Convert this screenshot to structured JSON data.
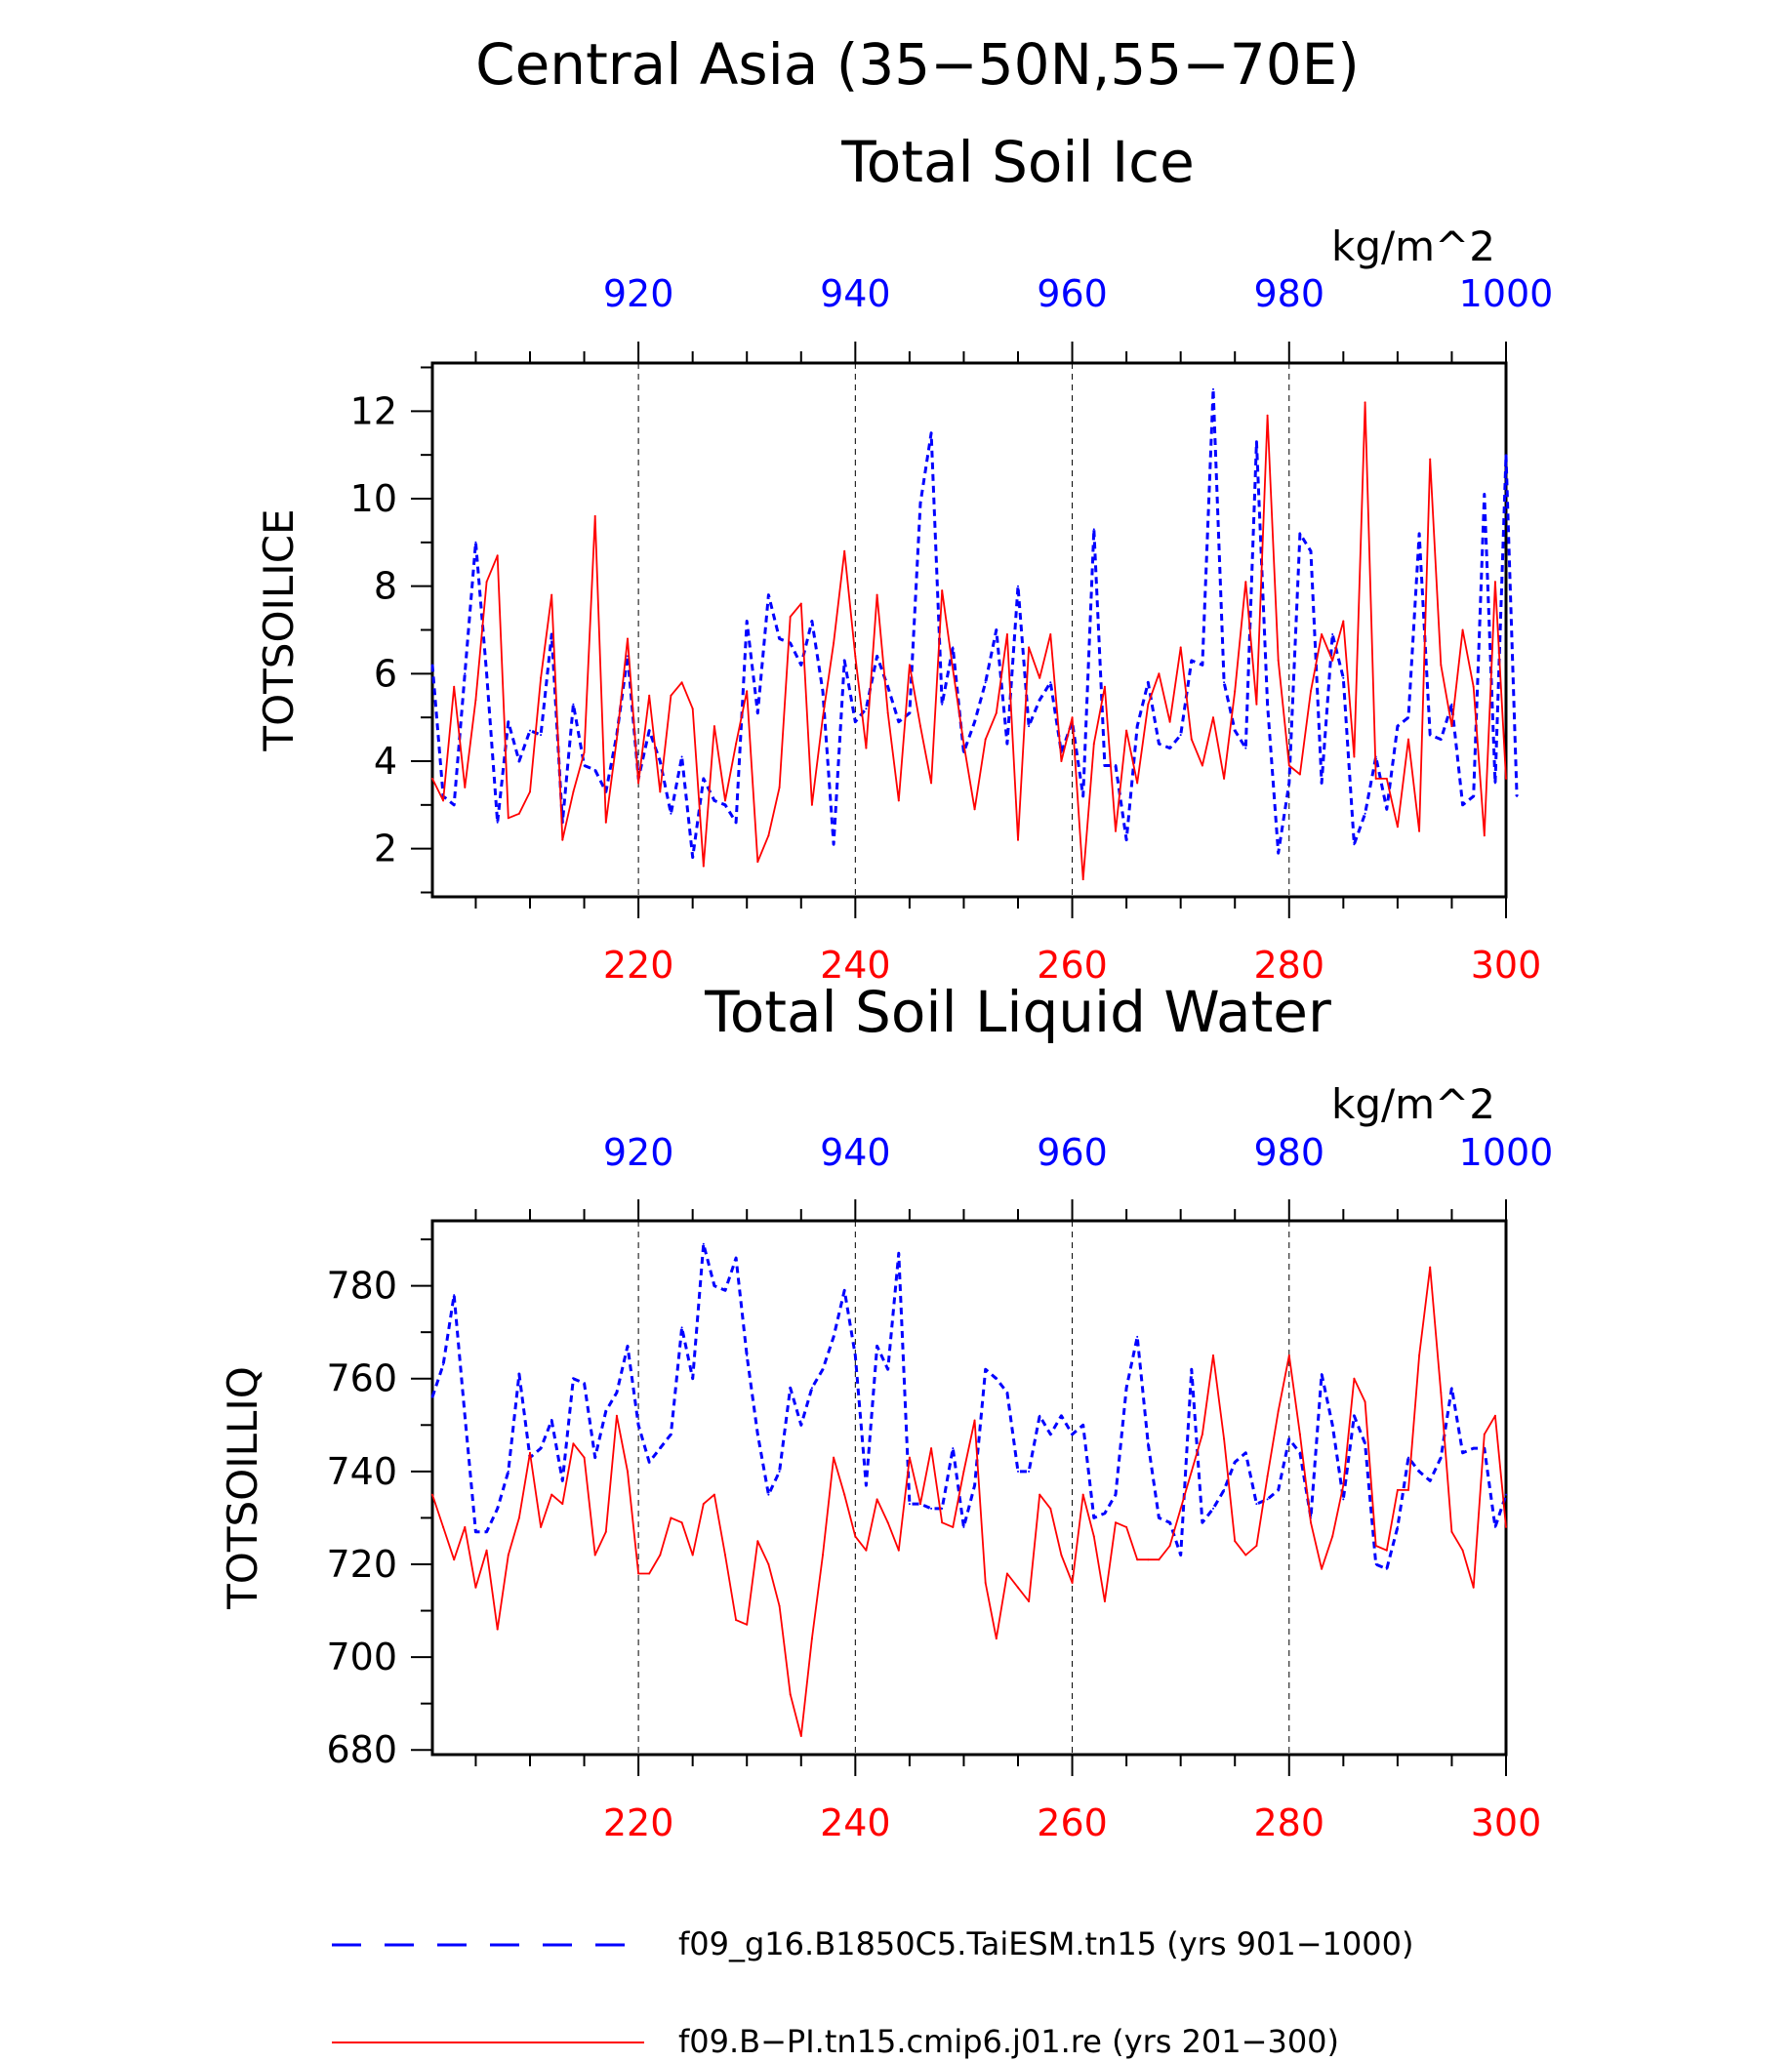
{
  "figure": {
    "title": "Central Asia (35−50N,55−70E)",
    "legend_position": "bottom"
  },
  "colors": {
    "blue": "#0000ff",
    "red": "#ff0000",
    "axis": "#000000",
    "grid": "#000000"
  },
  "legend": [
    {
      "label": "f09_g16.B1850C5.TaiESM.tn15 (yrs 901−1000)",
      "color": "#0000ff",
      "style": "dashed"
    },
    {
      "label": "f09.B−PI.tn15.cmip6.j01.re (yrs 201−300)",
      "color": "#ff0000",
      "style": "solid"
    }
  ],
  "chart_data": [
    {
      "type": "line",
      "title": "Total Soil Ice",
      "ylabel": "TOTSOILICE",
      "units": "kg/m^2",
      "ylim": [
        0.9,
        13.1
      ],
      "yticks": [
        2,
        4,
        6,
        8,
        10,
        12
      ],
      "grid": "vertical dashed at x ticks",
      "x_bottom": {
        "lim": [
          201,
          300
        ],
        "ticks": [
          220,
          240,
          260,
          280,
          300
        ],
        "color": "#ff0000"
      },
      "x_top": {
        "lim": [
          901,
          1000
        ],
        "ticks": [
          920,
          940,
          960,
          980,
          1000
        ],
        "color": "#0000ff"
      },
      "series": [
        {
          "axis": "top",
          "color": "#0000ff",
          "style": "dashed",
          "x_start": 901,
          "values": [
            6.2,
            3.2,
            3.0,
            6.0,
            9.0,
            6.0,
            2.6,
            4.9,
            4.0,
            4.7,
            4.6,
            6.9,
            2.6,
            5.3,
            3.9,
            3.8,
            3.3,
            4.6,
            6.4,
            3.6,
            4.7,
            4.0,
            2.8,
            4.1,
            1.8,
            3.6,
            3.1,
            3.0,
            2.6,
            7.2,
            5.1,
            7.8,
            6.8,
            6.7,
            6.2,
            7.2,
            5.6,
            2.1,
            6.3,
            4.9,
            5.2,
            6.4,
            5.7,
            4.9,
            5.1,
            9.9,
            11.5,
            5.3,
            6.6,
            4.2,
            4.9,
            5.8,
            7.0,
            4.4,
            8.0,
            4.8,
            5.4,
            5.8,
            4.2,
            4.9,
            3.2,
            9.3,
            3.9,
            3.9,
            2.2,
            4.8,
            5.8,
            4.4,
            4.3,
            4.6,
            6.3,
            6.2,
            12.5,
            5.8,
            4.7,
            4.3,
            11.3,
            5.3,
            1.9,
            3.5,
            9.2,
            8.8,
            3.5,
            6.9,
            5.9,
            2.1,
            2.8,
            4.1,
            2.9,
            4.8,
            5.0,
            9.2,
            4.6,
            4.5,
            5.3,
            3.0,
            3.2,
            10.1,
            3.5,
            11.0,
            3.2
          ]
        },
        {
          "axis": "bottom",
          "color": "#ff0000",
          "style": "solid",
          "x_start": 201,
          "values": [
            3.6,
            3.1,
            5.7,
            3.4,
            5.4,
            8.1,
            8.7,
            2.7,
            2.8,
            3.3,
            5.9,
            7.8,
            2.2,
            3.3,
            4.2,
            9.6,
            2.6,
            4.5,
            6.8,
            3.5,
            5.5,
            3.3,
            5.5,
            5.8,
            5.2,
            1.6,
            4.8,
            3.1,
            4.4,
            5.6,
            1.7,
            2.3,
            3.4,
            7.3,
            7.6,
            3.0,
            5.0,
            6.7,
            8.8,
            6.4,
            4.3,
            7.8,
            5.1,
            3.1,
            6.2,
            4.8,
            3.5,
            7.9,
            6.1,
            4.4,
            2.9,
            4.5,
            5.1,
            6.9,
            2.2,
            6.6,
            5.9,
            6.9,
            4.0,
            5.0,
            1.3,
            4.4,
            5.7,
            2.4,
            4.7,
            3.5,
            5.3,
            6.0,
            4.9,
            6.6,
            4.5,
            3.9,
            5.0,
            3.6,
            5.6,
            8.1,
            5.3,
            11.9,
            6.3,
            3.9,
            3.7,
            5.6,
            6.9,
            6.3,
            7.2,
            4.1,
            12.2,
            3.6,
            3.6,
            2.5,
            4.5,
            2.4,
            10.9,
            6.2,
            4.8,
            7.0,
            5.7,
            2.3,
            8.1,
            3.6
          ]
        }
      ]
    },
    {
      "type": "line",
      "title": "Total Soil Liquid Water",
      "ylabel": "TOTSOILLIQ",
      "units": "kg/m^2",
      "ylim": [
        679,
        794
      ],
      "yticks": [
        680,
        700,
        720,
        740,
        760,
        780
      ],
      "grid": "vertical dashed at x ticks",
      "x_bottom": {
        "lim": [
          201,
          300
        ],
        "ticks": [
          220,
          240,
          260,
          280,
          300
        ],
        "color": "#ff0000"
      },
      "x_top": {
        "lim": [
          901,
          1000
        ],
        "ticks": [
          920,
          940,
          960,
          980,
          1000
        ],
        "color": "#0000ff"
      },
      "series": [
        {
          "axis": "top",
          "color": "#0000ff",
          "style": "dashed",
          "x_start": 901,
          "values": [
            756,
            763,
            778,
            752,
            727,
            727,
            732,
            740,
            761,
            743,
            745,
            751,
            738,
            760,
            759,
            743,
            753,
            757,
            767,
            750,
            742,
            745,
            748,
            771,
            760,
            789,
            780,
            779,
            786,
            765,
            748,
            735,
            740,
            758,
            750,
            758,
            762,
            769,
            779,
            765,
            737,
            767,
            762,
            787,
            733,
            733,
            732,
            732,
            745,
            728,
            737,
            762,
            760,
            757,
            740,
            740,
            752,
            748,
            752,
            748,
            750,
            730,
            731,
            735,
            758,
            769,
            746,
            730,
            729,
            722,
            762,
            729,
            732,
            736,
            742,
            744,
            733,
            734,
            736,
            747,
            744,
            730,
            761,
            750,
            734,
            752,
            746,
            720,
            719,
            728,
            743,
            740,
            738,
            743,
            758,
            744,
            745,
            745,
            728,
            735
          ]
        },
        {
          "axis": "bottom",
          "color": "#ff0000",
          "style": "solid",
          "x_start": 201,
          "values": [
            735,
            728,
            721,
            728,
            715,
            723,
            706,
            722,
            730,
            744,
            728,
            735,
            733,
            746,
            743,
            722,
            727,
            752,
            740,
            718,
            718,
            722,
            730,
            729,
            722,
            733,
            735,
            722,
            708,
            707,
            725,
            720,
            711,
            692,
            683,
            704,
            722,
            743,
            735,
            726,
            723,
            734,
            729,
            723,
            743,
            733,
            745,
            729,
            728,
            740,
            751,
            716,
            704,
            718,
            715,
            712,
            735,
            732,
            722,
            716,
            735,
            726,
            712,
            729,
            728,
            721,
            721,
            721,
            724,
            732,
            740,
            748,
            765,
            747,
            725,
            722,
            724,
            739,
            753,
            765,
            748,
            729,
            719,
            726,
            737,
            760,
            755,
            724,
            723,
            736,
            736,
            765,
            784,
            757,
            727,
            723,
            715,
            748,
            752,
            728
          ]
        }
      ]
    }
  ]
}
